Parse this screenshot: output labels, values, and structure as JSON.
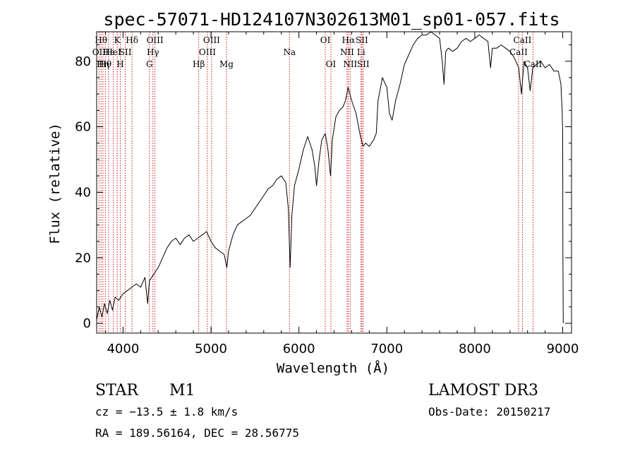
{
  "chart_data": {
    "type": "line",
    "title": "spec-57071-HD124107N302613M01_sp01-057.fits",
    "xlabel": "Wavelength (Å)",
    "ylabel": "Flux (relative)",
    "xlim": [
      3700,
      9100
    ],
    "ylim": [
      -3,
      89
    ],
    "x_ticks": [
      4000,
      5000,
      6000,
      7000,
      8000,
      9000
    ],
    "y_ticks": [
      0,
      20,
      40,
      60,
      80
    ],
    "line_color": "#000000",
    "marker_color": "#cc0000",
    "series": [
      {
        "name": "flux",
        "points": [
          [
            3700,
            1
          ],
          [
            3730,
            5
          ],
          [
            3760,
            2
          ],
          [
            3790,
            6
          ],
          [
            3820,
            3
          ],
          [
            3850,
            7
          ],
          [
            3880,
            4
          ],
          [
            3910,
            8
          ],
          [
            3950,
            7
          ],
          [
            4000,
            9
          ],
          [
            4050,
            10
          ],
          [
            4100,
            11
          ],
          [
            4150,
            12
          ],
          [
            4200,
            11
          ],
          [
            4250,
            14
          ],
          [
            4280,
            6
          ],
          [
            4300,
            13
          ],
          [
            4350,
            15
          ],
          [
            4400,
            17
          ],
          [
            4450,
            20
          ],
          [
            4500,
            23
          ],
          [
            4550,
            25
          ],
          [
            4600,
            26
          ],
          [
            4650,
            24
          ],
          [
            4700,
            26
          ],
          [
            4750,
            27
          ],
          [
            4800,
            25
          ],
          [
            4850,
            26
          ],
          [
            4900,
            27
          ],
          [
            4950,
            28
          ],
          [
            5000,
            25
          ],
          [
            5050,
            23
          ],
          [
            5100,
            22
          ],
          [
            5150,
            21
          ],
          [
            5180,
            17
          ],
          [
            5200,
            22
          ],
          [
            5250,
            27
          ],
          [
            5300,
            30
          ],
          [
            5350,
            31
          ],
          [
            5400,
            32
          ],
          [
            5450,
            33
          ],
          [
            5500,
            35
          ],
          [
            5550,
            37
          ],
          [
            5600,
            39
          ],
          [
            5650,
            41
          ],
          [
            5700,
            42
          ],
          [
            5750,
            44
          ],
          [
            5800,
            45
          ],
          [
            5850,
            43
          ],
          [
            5880,
            35
          ],
          [
            5900,
            17
          ],
          [
            5920,
            33
          ],
          [
            5950,
            42
          ],
          [
            6000,
            47
          ],
          [
            6050,
            53
          ],
          [
            6100,
            57
          ],
          [
            6150,
            53
          ],
          [
            6180,
            48
          ],
          [
            6200,
            42
          ],
          [
            6230,
            50
          ],
          [
            6260,
            56
          ],
          [
            6300,
            58
          ],
          [
            6330,
            53
          ],
          [
            6360,
            45
          ],
          [
            6380,
            56
          ],
          [
            6420,
            63
          ],
          [
            6460,
            65
          ],
          [
            6500,
            66
          ],
          [
            6530,
            68
          ],
          [
            6560,
            72
          ],
          [
            6580,
            70
          ],
          [
            6600,
            68
          ],
          [
            6650,
            64
          ],
          [
            6700,
            57
          ],
          [
            6730,
            54
          ],
          [
            6760,
            55
          ],
          [
            6800,
            54
          ],
          [
            6850,
            56
          ],
          [
            6880,
            58
          ],
          [
            6900,
            68
          ],
          [
            6950,
            75
          ],
          [
            7000,
            72
          ],
          [
            7030,
            64
          ],
          [
            7060,
            62
          ],
          [
            7100,
            68
          ],
          [
            7150,
            73
          ],
          [
            7200,
            79
          ],
          [
            7250,
            82
          ],
          [
            7300,
            85
          ],
          [
            7350,
            87
          ],
          [
            7400,
            88
          ],
          [
            7450,
            88
          ],
          [
            7500,
            89
          ],
          [
            7550,
            88
          ],
          [
            7600,
            87
          ],
          [
            7630,
            80
          ],
          [
            7650,
            73
          ],
          [
            7670,
            83
          ],
          [
            7700,
            84
          ],
          [
            7750,
            83
          ],
          [
            7800,
            84
          ],
          [
            7850,
            86
          ],
          [
            7900,
            87
          ],
          [
            7950,
            86
          ],
          [
            8000,
            87
          ],
          [
            8050,
            88
          ],
          [
            8100,
            87
          ],
          [
            8150,
            86
          ],
          [
            8180,
            78
          ],
          [
            8200,
            84
          ],
          [
            8250,
            84
          ],
          [
            8300,
            85
          ],
          [
            8350,
            84
          ],
          [
            8400,
            83
          ],
          [
            8450,
            81
          ],
          [
            8500,
            78
          ],
          [
            8530,
            70
          ],
          [
            8560,
            80
          ],
          [
            8600,
            78
          ],
          [
            8630,
            71
          ],
          [
            8660,
            78
          ],
          [
            8700,
            79
          ],
          [
            8750,
            80
          ],
          [
            8800,
            78
          ],
          [
            8850,
            79
          ],
          [
            8900,
            77
          ],
          [
            8950,
            77
          ],
          [
            8980,
            73
          ],
          [
            8995,
            64
          ],
          [
            9000,
            58
          ],
          [
            9002,
            20
          ],
          [
            9004,
            14
          ],
          [
            9006,
            0
          ]
        ]
      }
    ],
    "line_markers": [
      {
        "wavelength": 3727,
        "label": "OII",
        "row": 1
      },
      {
        "wavelength": 3750,
        "label": "Hθ",
        "row": 0
      },
      {
        "wavelength": 3771,
        "label": "Hη",
        "row": 2
      },
      {
        "wavelength": 3798,
        "label": "Hθ",
        "row": 2
      },
      {
        "wavelength": 3835,
        "label": "Hε",
        "row": 1
      },
      {
        "wavelength": 3889,
        "label": "HeI",
        "row": 1
      },
      {
        "wavelength": 3934,
        "label": "K",
        "row": 0
      },
      {
        "wavelength": 3969,
        "label": "H",
        "row": 2
      },
      {
        "wavelength": 4026,
        "label": "SII",
        "row": 1
      },
      {
        "wavelength": 4102,
        "label": "Hδ",
        "row": 0
      },
      {
        "wavelength": 4300,
        "label": "G",
        "row": 2
      },
      {
        "wavelength": 4340,
        "label": "Hγ",
        "row": 1
      },
      {
        "wavelength": 4363,
        "label": "OIII",
        "row": 0
      },
      {
        "wavelength": 4861,
        "label": "Hβ",
        "row": 2
      },
      {
        "wavelength": 4959,
        "label": "OIII",
        "row": 1
      },
      {
        "wavelength": 5007,
        "label": "OIII",
        "row": 0
      },
      {
        "wavelength": 5176,
        "label": "Mg",
        "row": 2
      },
      {
        "wavelength": 5893,
        "label": "Na",
        "row": 1
      },
      {
        "wavelength": 6300,
        "label": "OI",
        "row": 0
      },
      {
        "wavelength": 6364,
        "label": "OI",
        "row": 2
      },
      {
        "wavelength": 6548,
        "label": "NII",
        "row": 1
      },
      {
        "wavelength": 6563,
        "label": "Hα",
        "row": 0
      },
      {
        "wavelength": 6583,
        "label": "NII",
        "row": 2
      },
      {
        "wavelength": 6707,
        "label": "Li",
        "row": 1
      },
      {
        "wavelength": 6716,
        "label": "SII",
        "row": 0
      },
      {
        "wavelength": 6731,
        "label": "SII",
        "row": 2
      },
      {
        "wavelength": 8498,
        "label": "CaII",
        "row": 1
      },
      {
        "wavelength": 8542,
        "label": "CaII",
        "row": 0
      },
      {
        "wavelength": 8662,
        "label": "CaII",
        "row": 2
      }
    ]
  },
  "info": {
    "object_class": "STAR",
    "subclass": "M1",
    "survey": "LAMOST DR3",
    "cz": "cz = −13.5 ± 1.8 km/s",
    "obs_date": "Obs-Date: 20150217",
    "coords": "RA = 189.56164, DEC =  28.56775"
  }
}
